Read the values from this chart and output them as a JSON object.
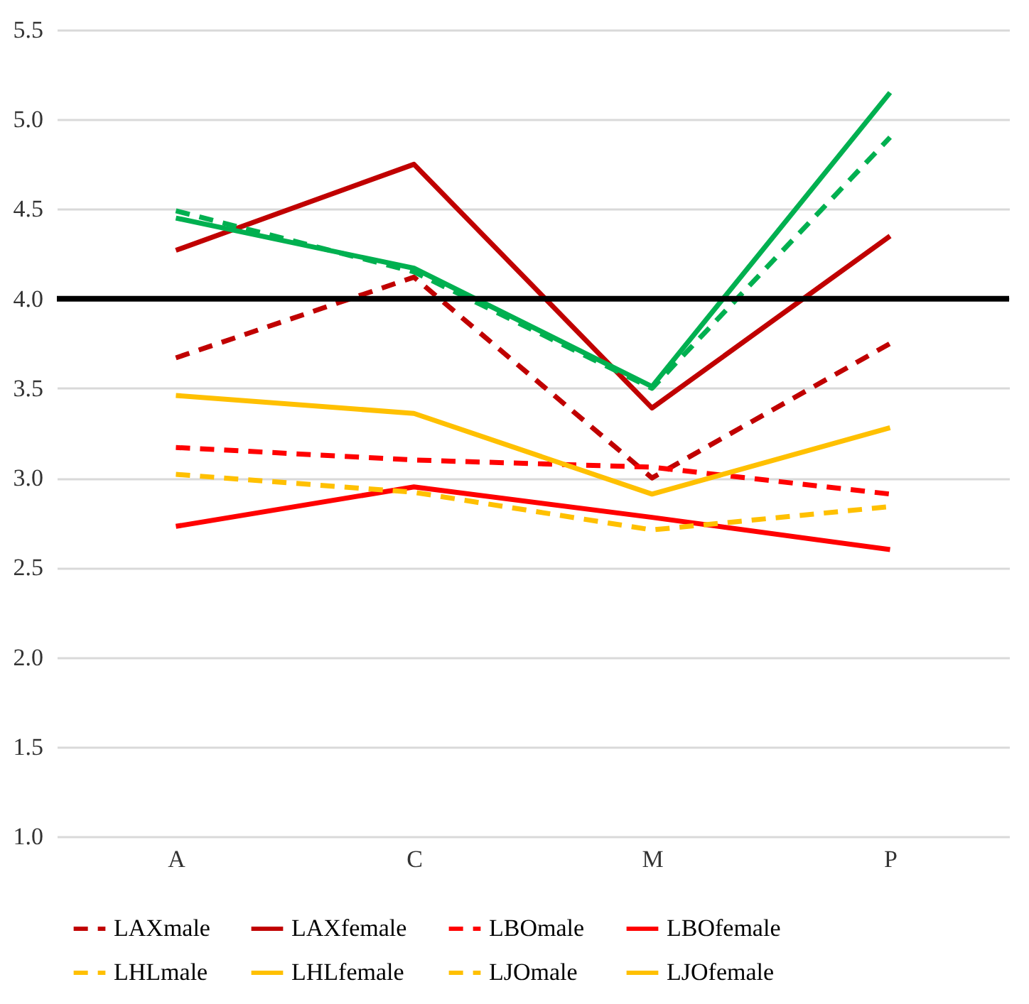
{
  "chart_data": {
    "type": "line",
    "categories": [
      "A",
      "C",
      "M",
      "P"
    ],
    "series": [
      {
        "name": "LAXmale",
        "color": "#c00000",
        "line_style": "dashed",
        "values": [
          3.67,
          4.12,
          3.0,
          3.75
        ]
      },
      {
        "name": "LAXfemale",
        "color": "#c00000",
        "line_style": "solid",
        "values": [
          4.27,
          4.75,
          3.39,
          4.35
        ]
      },
      {
        "name": "LBOmale",
        "color": "#ff0000",
        "line_style": "dashed",
        "values": [
          3.17,
          3.1,
          3.06,
          2.91
        ]
      },
      {
        "name": "LBOfemale",
        "color": "#ff0000",
        "line_style": "solid",
        "values": [
          2.73,
          2.95,
          2.78,
          2.6
        ]
      },
      {
        "name": "LHLmale",
        "color": "#ffc000",
        "line_style": "dashed",
        "values": [
          3.02,
          2.92,
          2.71,
          2.84
        ]
      },
      {
        "name": "LHLfemale",
        "color": "#ffc000",
        "line_style": "solid",
        "values": [
          3.46,
          3.36,
          2.91,
          3.28
        ]
      },
      {
        "color": "#00b050",
        "line_style": "dashed",
        "values": [
          4.49,
          4.15,
          3.5,
          4.9
        ]
      },
      {
        "color": "#00b050",
        "line_style": "solid",
        "values": [
          4.45,
          4.17,
          3.51,
          5.15
        ]
      },
      {
        "name": "LJOmale",
        "color": "#ffc000",
        "line_style": "dashed",
        "values": [
          null,
          null,
          null,
          null
        ]
      },
      {
        "name": "LJOfemale",
        "color": "#ffc000",
        "line_style": "solid",
        "values": [
          null,
          null,
          null,
          null
        ]
      }
    ],
    "ylim": [
      1.0,
      5.5
    ],
    "yticks": [
      {
        "value": 1,
        "label": "1.0"
      },
      1.5,
      {
        "value": 2,
        "label": "2.0"
      },
      2.5,
      {
        "value": 3,
        "label": "3.0"
      },
      3.5,
      {
        "value": 4,
        "label": "4.0"
      },
      4.5,
      {
        "value": 5,
        "label": "5.0"
      },
      5.5
    ],
    "grid": "y",
    "legend": "bottom",
    "ref_lines": [
      {
        "axis": "y",
        "value": 4,
        "color": "#000000"
      }
    ]
  }
}
